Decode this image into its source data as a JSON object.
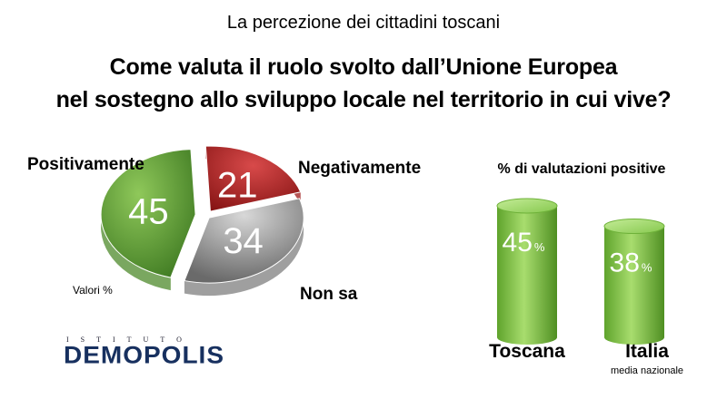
{
  "header": {
    "supertitle": "La percezione dei cittadini toscani",
    "title_line1": "Come valuta il ruolo svolto dall’Unione Europea",
    "title_line2": "nel sostegno allo sviluppo locale nel territorio in cui vive?"
  },
  "chart_data": [
    {
      "type": "pie",
      "note": "Valori %",
      "slices": [
        {
          "label": "Positivamente",
          "value": 45,
          "color": "#4e8a2b"
        },
        {
          "label": "Negativamente",
          "value": 21,
          "color": "#9e1b1b"
        },
        {
          "label": "Non sa",
          "value": 34,
          "color": "#7f7f7f"
        }
      ]
    },
    {
      "type": "bar",
      "title": "% di valutazioni positive",
      "categories": [
        "Toscana",
        "Italia"
      ],
      "category_subtitles": [
        "",
        "media nazionale"
      ],
      "values": [
        45,
        38
      ],
      "value_suffix": "%",
      "color": "#7cc23f"
    }
  ],
  "logo": {
    "small": "ISTITUTO",
    "big": "DEMOPOLIS"
  }
}
